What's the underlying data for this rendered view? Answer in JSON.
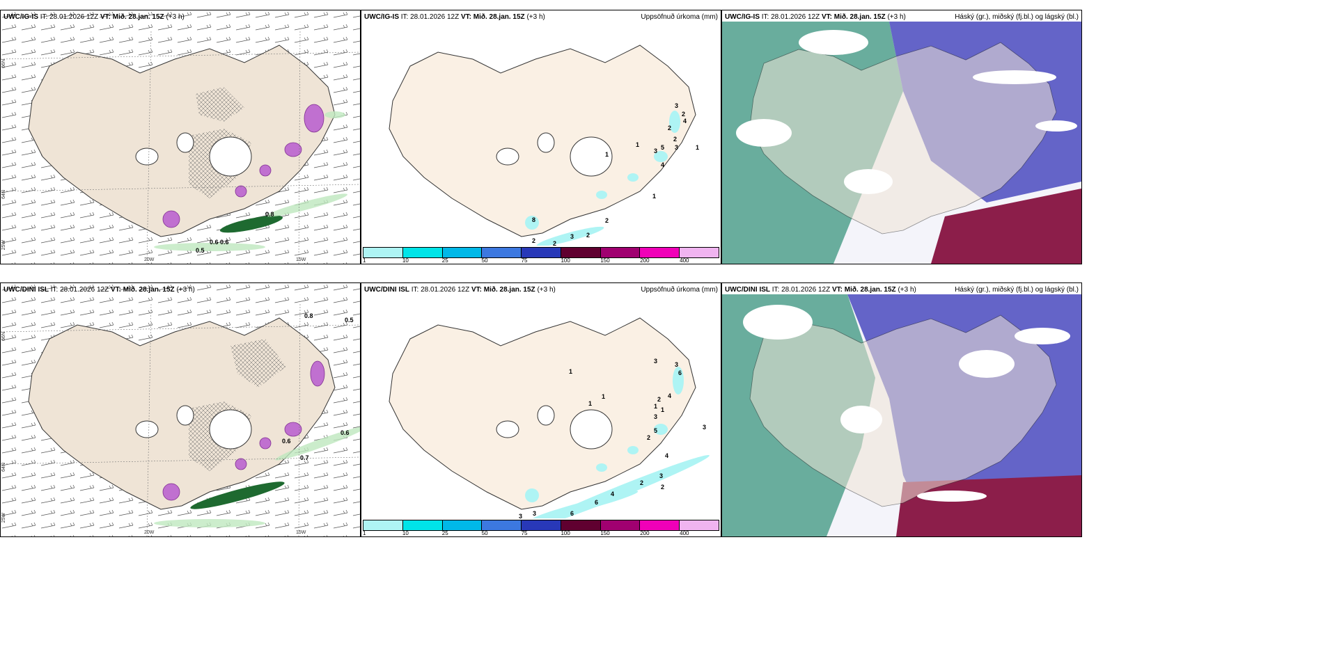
{
  "rows": [
    {
      "model": "UWC/IG-IS",
      "it": "IT: 28.01.2026 12Z",
      "vt_prefix": "VT:",
      "vt": "Mið. 28.jan. 15Z",
      "lead": "(+3 h)",
      "panel2_title": "Uppsöfnuð úrkoma (mm)",
      "panel3_title": "Háský (gr.), miðský (fj.bl.) og lágský (bl.)",
      "precip_labels": [
        "3",
        "2",
        "4",
        "2",
        "5",
        "3",
        "2",
        "3",
        "1",
        "4",
        "1",
        "1",
        "1",
        "2",
        "2",
        "3",
        "8",
        "2",
        "2"
      ],
      "panel1_values": [
        "0.8",
        "0.6",
        "0.5",
        "0.6"
      ]
    },
    {
      "model": "UWC/DINI ISL",
      "it": "IT: 28.01.2026 12Z",
      "vt_prefix": "VT:",
      "vt": "Mið. 28.jan. 15Z",
      "lead": "(+3 h)",
      "panel2_title": "Uppsöfnuð úrkoma (mm)",
      "panel3_title": "Háský (gr.), miðský (fj.bl.) og lágský (bl.)",
      "precip_labels": [
        "3",
        "3",
        "6",
        "4",
        "2",
        "1",
        "1",
        "3",
        "5",
        "2",
        "3",
        "3",
        "4",
        "2",
        "2",
        "6",
        "4",
        "3",
        "6",
        "3",
        "1",
        "1",
        "1"
      ],
      "panel1_values": [
        "0.8",
        "0.5",
        "0.6",
        "0.7",
        "0.6"
      ]
    }
  ],
  "axes": {
    "lon_left": "20W",
    "lon_right": "15W",
    "lat_top": "66N",
    "lat_mid": "64N",
    "lat_bottom": "25W"
  },
  "colorbar": {
    "labels": [
      "1",
      "10",
      "25",
      "50",
      "75",
      "100",
      "150",
      "200",
      "400"
    ],
    "colors": [
      "#aef4f4",
      "#00e4e8",
      "#00b8e8",
      "#3c78e0",
      "#2838b8",
      "#600030",
      "#a00070",
      "#f000b8",
      "#f0b4f0"
    ]
  },
  "colors": {
    "land": "#efe4d6",
    "land_precip": "#faf0e4",
    "low_cloud": "#6464c8",
    "mid_cloud": "#50a08c",
    "high_cloud": "#8c1e4a",
    "green_precip": "#3caa50"
  }
}
